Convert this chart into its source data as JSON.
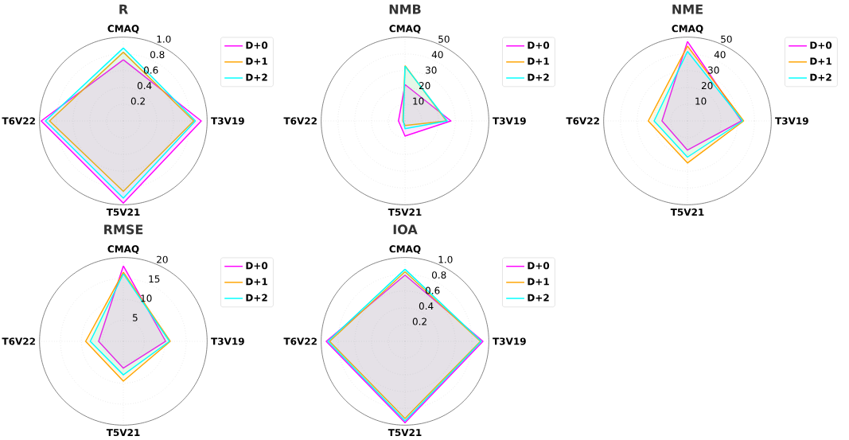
{
  "chart_data": [
    {
      "type": "radar",
      "title": "R",
      "categories": [
        "CMAQ",
        "T3V19",
        "T5V21",
        "T6V22"
      ],
      "ylim": [
        0,
        1
      ],
      "yticks": [
        0.2,
        0.4,
        0.6,
        0.8,
        {
          "value": 1,
          "label": "1.0"
        }
      ],
      "grid": true,
      "legend": "top right",
      "marker": "none",
      "line_style": "solid",
      "series": [
        {
          "name": "D+0",
          "color": "#ff00ff",
          "values": [
            0.73,
            0.93,
            0.98,
            0.98
          ]
        },
        {
          "name": "D+1",
          "color": "#ffa500",
          "values": [
            0.82,
            0.84,
            0.84,
            0.88
          ]
        },
        {
          "name": "D+2",
          "color": "#00ffff",
          "values": [
            0.87,
            0.86,
            0.92,
            0.93
          ]
        }
      ]
    },
    {
      "type": "radar",
      "title": "NMB",
      "categories": [
        "CMAQ",
        "T3V19",
        "T5V21",
        "T6V22"
      ],
      "ylim": [
        0,
        50
      ],
      "yticks": [
        10,
        20,
        30,
        40,
        50
      ],
      "grid": true,
      "legend": "top right",
      "marker": "none",
      "line_style": "solid",
      "series": [
        {
          "name": "D+0",
          "color": "#ff00ff",
          "values": [
            21.7,
            27.4,
            9,
            3.9
          ]
        },
        {
          "name": "D+1",
          "color": "#ffa500",
          "values": [
            33,
            24.7,
            2.7,
            1.3
          ]
        },
        {
          "name": "D+2",
          "color": "#00ffff",
          "values": [
            32.7,
            25.2,
            4.6,
            1
          ]
        }
      ]
    },
    {
      "type": "radar",
      "title": "NME",
      "categories": [
        "CMAQ",
        "T3V19",
        "T5V21",
        "T6V22"
      ],
      "ylim": [
        0,
        50
      ],
      "yticks": [
        10,
        20,
        30,
        40,
        50
      ],
      "grid": true,
      "legend": "top right",
      "marker": "none",
      "line_style": "solid",
      "series": [
        {
          "name": "D+0",
          "color": "#ff00ff",
          "values": [
            47.4,
            32.2,
            17.4,
            15.2
          ]
        },
        {
          "name": "D+1",
          "color": "#ffa500",
          "values": [
            44.7,
            33.5,
            25.1,
            23.4
          ]
        },
        {
          "name": "D+2",
          "color": "#00ffff",
          "values": [
            41.5,
            32.9,
            21.6,
            19.9
          ]
        }
      ]
    },
    {
      "type": "radar",
      "title": "RMSE",
      "categories": [
        "CMAQ",
        "T3V19",
        "T5V21",
        "T6V22"
      ],
      "ylim": [
        0,
        20
      ],
      "yticks": [
        5,
        10,
        15,
        20
      ],
      "grid": true,
      "legend": "top right",
      "marker": "none",
      "line_style": "solid",
      "series": [
        {
          "name": "D+0",
          "color": "#ff00ff",
          "values": [
            18,
            10.1,
            6.4,
            5.9
          ]
        },
        {
          "name": "D+1",
          "color": "#ffa500",
          "values": [
            16.5,
            11.2,
            9.5,
            9
          ]
        },
        {
          "name": "D+2",
          "color": "#00ffff",
          "values": [
            16.1,
            11,
            8,
            7.9
          ]
        }
      ]
    },
    {
      "type": "radar",
      "title": "IOA",
      "categories": [
        "CMAQ",
        "T3V19",
        "T5V21",
        "T6V22"
      ],
      "ylim": [
        0,
        1
      ],
      "yticks": [
        0.2,
        0.4,
        0.6,
        0.8,
        {
          "value": 1,
          "label": "1.0"
        }
      ],
      "grid": true,
      "legend": "top right",
      "marker": "none",
      "line_style": "solid",
      "series": [
        {
          "name": "D+0",
          "color": "#ff00ff",
          "values": [
            0.79,
            0.93,
            0.97,
            0.94
          ]
        },
        {
          "name": "D+1",
          "color": "#ffa500",
          "values": [
            0.83,
            0.9,
            0.92,
            0.9
          ]
        },
        {
          "name": "D+2",
          "color": "#00ffff",
          "values": [
            0.86,
            0.91,
            0.95,
            0.92
          ]
        }
      ]
    }
  ]
}
